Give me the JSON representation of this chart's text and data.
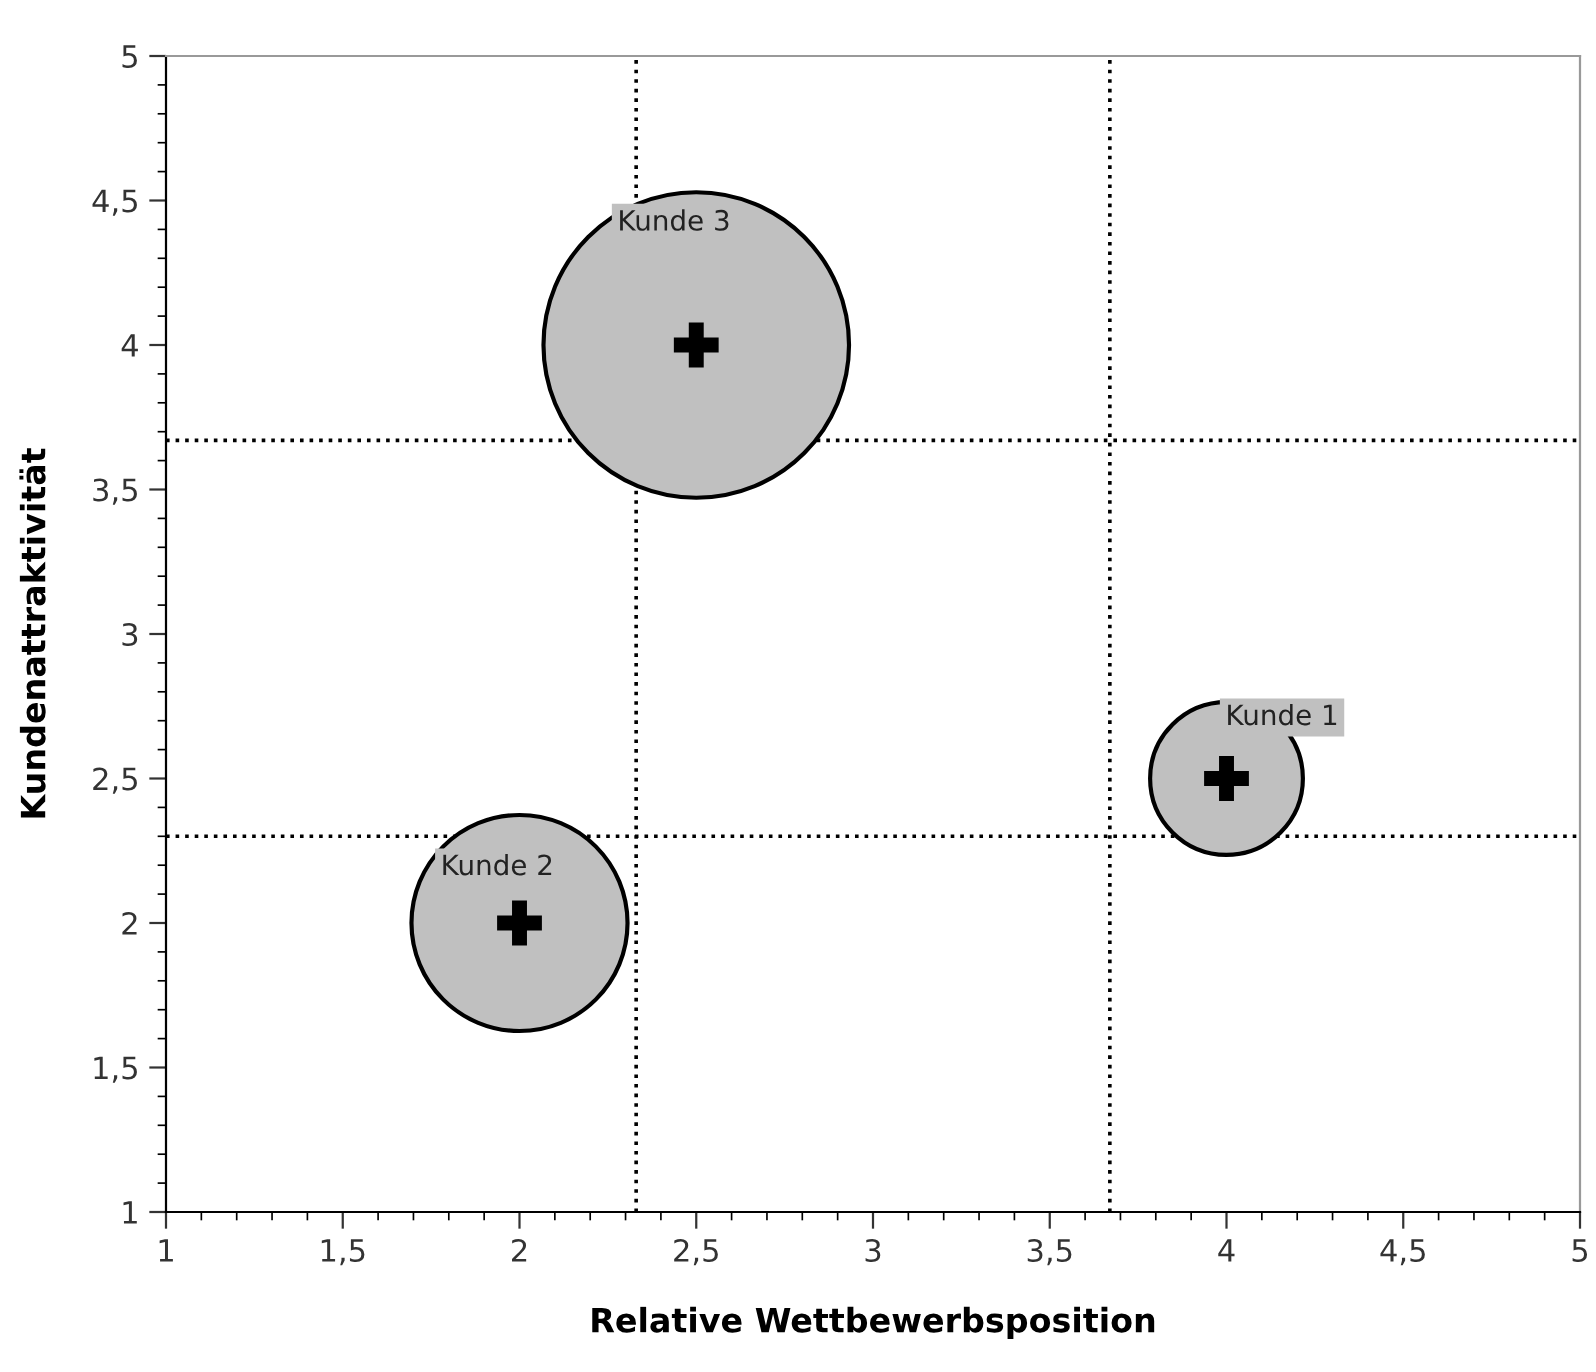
{
  "chart_data": {
    "type": "bubble",
    "xlabel": "Relative Wettbewerbsposition",
    "ylabel": "Kundenattraktivität",
    "x": [
      4,
      2,
      2.5
    ],
    "series": [
      {
        "color": "#c0c0c0",
        "values": [
          2.5,
          2,
          4
        ],
        "sizes": [
          0.25,
          0.5,
          1
        ]
      },
      {
        "type": "scatter",
        "color": "#000000",
        "values": [
          2.5,
          2,
          4
        ],
        "marker": "cross"
      }
    ],
    "annotations": [
      "Kunde 1",
      "Kunde 2",
      "Kunde 3"
    ],
    "xlim": [
      1,
      5
    ],
    "ylim": [
      1,
      5
    ],
    "xticks": [
      1,
      {
        "value": 1.5,
        "label": "1,5"
      },
      2,
      {
        "value": 2.5,
        "label": "2,5"
      },
      3,
      {
        "value": 3.5,
        "label": "3,5"
      },
      4,
      {
        "value": 4.5,
        "label": "4,5"
      },
      5
    ],
    "yticks": [
      1,
      {
        "value": 1.5,
        "label": "1,5"
      },
      2,
      {
        "value": 2.5,
        "label": "2,5"
      },
      3,
      {
        "value": 3.5,
        "label": "3,5"
      },
      4,
      {
        "value": 4.5,
        "label": "4,5"
      },
      5
    ],
    "ref_lines": [
      {
        "axis": "x",
        "value": 2.33,
        "line_style": "dotted",
        "color": "#000000"
      },
      {
        "axis": "x",
        "value": 3.67,
        "line_style": "dotted",
        "color": "#000000"
      },
      {
        "axis": "y",
        "value": 3.67,
        "line_style": "dotted",
        "color": "#000000"
      },
      {
        "axis": "y",
        "value": 2.3,
        "line_style": "dotted",
        "color": "#000000"
      }
    ],
    "grid": false,
    "legend": false
  }
}
